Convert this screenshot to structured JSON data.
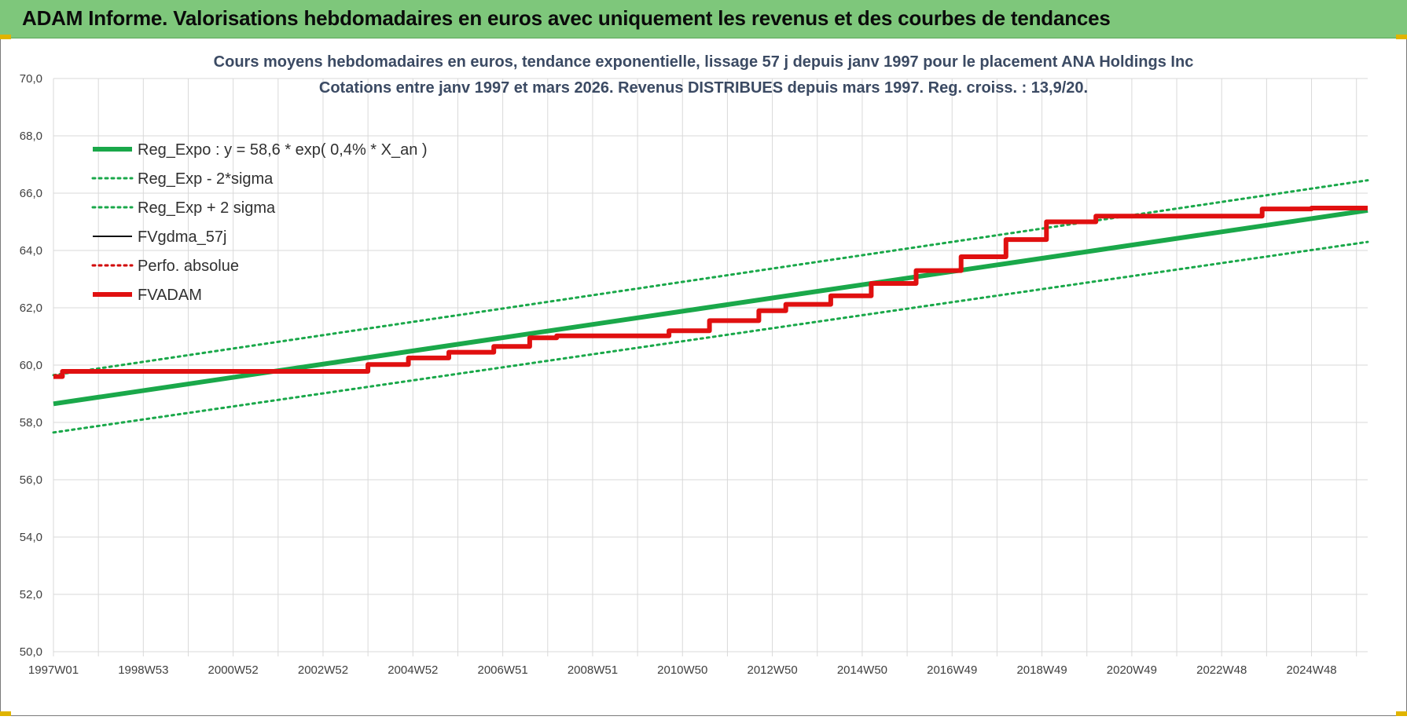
{
  "header": {
    "title": "ADAM Informe. Valorisations hebdomadaires en euros avec uniquement les revenus et des courbes de tendances"
  },
  "colors": {
    "header_bg": "#7ec77b",
    "reg_green": "#1aa84a",
    "band_green": "#1aa84a",
    "gdma_black": "#111111",
    "perf_red": "#d10000",
    "adam_red": "#e01010",
    "grid": "#d9d9d9"
  },
  "chart_data": {
    "type": "line",
    "title": "Cours moyens hebdomadaires en euros, tendance exponentielle, lissage 57 j depuis janv 1997 pour le placement ANA Holdings Inc",
    "subtitle": "Cotations entre janv 1997 et mars 2026. Revenus DISTRIBUES depuis mars 1997. Reg. croiss. : 13,9/20.",
    "y_ticks": [
      "70,0",
      "68,0",
      "66,0",
      "64,0",
      "62,0",
      "60,0",
      "58,0",
      "56,0",
      "54,0",
      "52,0",
      "50,0"
    ],
    "ylim": [
      50,
      70
    ],
    "x_ticks": [
      "1997W01",
      "1998W53",
      "2000W52",
      "2002W52",
      "2004W52",
      "2006W51",
      "2008W51",
      "2010W50",
      "2012W50",
      "2014W50",
      "2016W49",
      "2018W49",
      "2020W49",
      "2022W48",
      "2024W48"
    ],
    "xlim": [
      1997.0,
      2026.25
    ],
    "grid": true,
    "legend_position": "top-left",
    "legend": [
      {
        "label": "Reg_Expo : y = 58,6 * exp( 0,4% *  X_an )",
        "style": "solid-thick",
        "color": "#1aa84a"
      },
      {
        "label": "Reg_Exp - 2*sigma",
        "style": "dotted",
        "color": "#1aa84a"
      },
      {
        "label": "Reg_Exp + 2 sigma",
        "style": "dotted",
        "color": "#1aa84a"
      },
      {
        "label": "FVgdma_57j",
        "style": "solid-thin",
        "color": "#111111"
      },
      {
        "label": "Perfo. absolue",
        "style": "dotted",
        "color": "#d10000"
      },
      {
        "label": "FVADAM",
        "style": "solid-thick",
        "color": "#e01010"
      }
    ],
    "series": [
      {
        "name": "Reg_Expo : y = 58,6 * exp( 0,4% *  X_an )",
        "x": [
          1997.0,
          2026.25
        ],
        "values": [
          58.65,
          65.4
        ]
      },
      {
        "name": "Reg_Exp - 2*sigma",
        "x": [
          1997.0,
          2026.25
        ],
        "values": [
          57.65,
          64.3
        ]
      },
      {
        "name": "Reg_Exp + 2 sigma",
        "x": [
          1997.0,
          2026.25
        ],
        "values": [
          59.65,
          66.45
        ]
      },
      {
        "name": "FVADAM",
        "x": [
          1997.0,
          1997.2,
          1997.2,
          2004.0,
          2004.0,
          2004.9,
          2004.9,
          2005.8,
          2005.8,
          2006.8,
          2006.8,
          2007.6,
          2007.6,
          2008.2,
          2008.2,
          2010.7,
          2010.7,
          2011.6,
          2011.6,
          2012.7,
          2012.7,
          2013.3,
          2013.3,
          2014.3,
          2014.3,
          2015.2,
          2015.2,
          2016.2,
          2016.2,
          2017.2,
          2017.2,
          2018.2,
          2018.2,
          2019.1,
          2019.1,
          2020.2,
          2020.2,
          2023.9,
          2023.9,
          2025.0,
          2025.0,
          2026.25
        ],
        "values": [
          59.6,
          59.6,
          59.78,
          59.78,
          60.02,
          60.02,
          60.25,
          60.25,
          60.45,
          60.45,
          60.65,
          60.65,
          60.95,
          60.95,
          61.02,
          61.02,
          61.2,
          61.2,
          61.55,
          61.55,
          61.9,
          61.9,
          62.12,
          62.12,
          62.42,
          62.42,
          62.85,
          62.85,
          63.3,
          63.3,
          63.78,
          63.78,
          64.38,
          64.38,
          65.0,
          65.0,
          65.2,
          65.2,
          65.45,
          65.45,
          65.48,
          65.48
        ]
      }
    ]
  }
}
